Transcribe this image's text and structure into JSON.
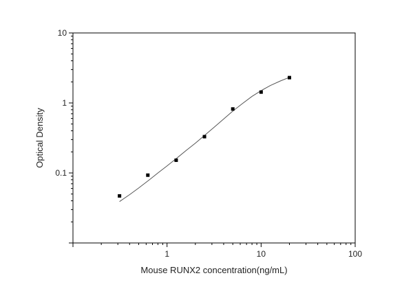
{
  "chart_data": {
    "type": "scatter",
    "xlabel": "Mouse RUNX2 concentration(ng/mL)",
    "ylabel": "Optical Density",
    "x_scale": "log",
    "y_scale": "log",
    "xlim": [
      0.1,
      100
    ],
    "ylim": [
      0.01,
      10
    ],
    "x_ticks": [
      {
        "value": 1,
        "label": "1"
      },
      {
        "value": 10,
        "label": "10"
      },
      {
        "value": 100,
        "label": "100"
      }
    ],
    "y_ticks": [
      {
        "value": 0.1,
        "label": "0.1"
      },
      {
        "value": 1,
        "label": "1"
      },
      {
        "value": 10,
        "label": "10"
      }
    ],
    "points": [
      {
        "x": 0.3125,
        "y": 0.047
      },
      {
        "x": 0.625,
        "y": 0.093
      },
      {
        "x": 1.25,
        "y": 0.152
      },
      {
        "x": 2.5,
        "y": 0.33
      },
      {
        "x": 5,
        "y": 0.82
      },
      {
        "x": 10,
        "y": 1.43
      },
      {
        "x": 20,
        "y": 2.3
      }
    ],
    "fit_curve": {
      "x": [
        0.3125,
        0.4,
        0.5,
        0.65,
        0.8,
        1.0,
        1.25,
        1.6,
        2.0,
        2.5,
        3.2,
        4.0,
        5.0,
        6.3,
        8.0,
        10.0,
        12.5,
        16.0,
        20.0
      ],
      "y": [
        0.039,
        0.049,
        0.061,
        0.08,
        0.1,
        0.126,
        0.16,
        0.21,
        0.266,
        0.343,
        0.455,
        0.59,
        0.765,
        0.975,
        1.24,
        1.5,
        1.77,
        2.06,
        2.32
      ]
    },
    "grid": false,
    "legend": "none",
    "marker_color": "#000000",
    "line_color": "#555555"
  }
}
